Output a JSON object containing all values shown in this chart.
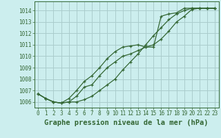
{
  "title": "Graphe pression niveau de la mer (hPa)",
  "bg_color": "#cceeee",
  "grid_color": "#aacccc",
  "line_color": "#336633",
  "xlim": [
    -0.5,
    23.5
  ],
  "ylim": [
    1005.5,
    1014.8
  ],
  "xticks": [
    0,
    1,
    2,
    3,
    4,
    5,
    6,
    7,
    8,
    9,
    10,
    11,
    12,
    13,
    14,
    15,
    16,
    17,
    18,
    19,
    20,
    21,
    22,
    23
  ],
  "yticks": [
    1006,
    1007,
    1008,
    1009,
    1010,
    1011,
    1012,
    1013,
    1014
  ],
  "series1_x": [
    0,
    1,
    2,
    3,
    4,
    5,
    6,
    7,
    8,
    9,
    10,
    11,
    12,
    13,
    14,
    15,
    16,
    17,
    18,
    19,
    20,
    21,
    22,
    23
  ],
  "series1_y": [
    1006.7,
    1006.3,
    1006.0,
    1005.9,
    1006.0,
    1006.5,
    1007.3,
    1007.5,
    1008.3,
    1009.0,
    1009.5,
    1010.0,
    1010.2,
    1010.5,
    1010.8,
    1011.0,
    1011.5,
    1012.2,
    1013.0,
    1013.5,
    1014.1,
    1014.2,
    1014.2,
    1014.2
  ],
  "series2_x": [
    0,
    1,
    2,
    3,
    4,
    5,
    6,
    7,
    8,
    9,
    10,
    11,
    12,
    13,
    14,
    15,
    16,
    17,
    18,
    19,
    20,
    21,
    22,
    23
  ],
  "series2_y": [
    1006.7,
    1006.3,
    1006.0,
    1005.9,
    1006.3,
    1007.0,
    1007.8,
    1008.3,
    1009.0,
    1009.8,
    1010.4,
    1010.8,
    1010.9,
    1011.0,
    1010.8,
    1010.8,
    1013.5,
    1013.7,
    1013.8,
    1014.2,
    1014.2,
    1014.2,
    1014.2,
    1014.2
  ],
  "series3_x": [
    0,
    1,
    2,
    3,
    4,
    5,
    6,
    7,
    8,
    9,
    10,
    11,
    12,
    13,
    14,
    15,
    16,
    17,
    18,
    19,
    20,
    21,
    22,
    23
  ],
  "series3_y": [
    1006.7,
    1006.3,
    1006.0,
    1005.9,
    1006.0,
    1006.0,
    1006.2,
    1006.5,
    1007.0,
    1007.5,
    1008.0,
    1008.8,
    1009.5,
    1010.2,
    1011.0,
    1011.8,
    1012.5,
    1013.2,
    1013.7,
    1014.0,
    1014.2,
    1014.2,
    1014.2,
    1014.2
  ],
  "tick_fontsize": 5.5,
  "xlabel_fontsize": 7.5
}
